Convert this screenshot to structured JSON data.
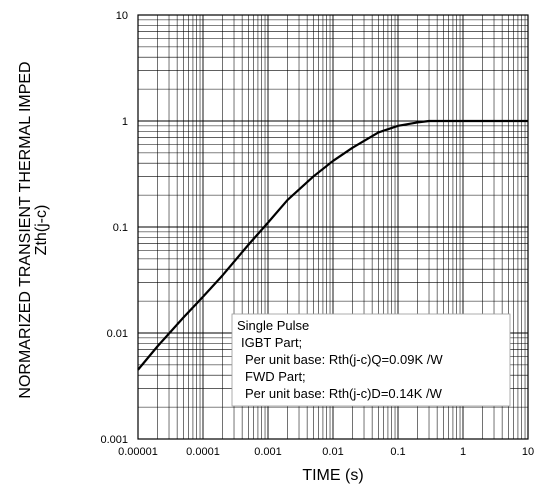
{
  "chart_data": {
    "type": "line",
    "xlabel": "TIME (s)",
    "ylabel_line1": "NORMARIZED TRANSIENT THERMAL IMPED",
    "ylabel_line2": "Zth(j-c)",
    "x_scale": "log",
    "y_scale": "log",
    "xlim": [
      1e-05,
      10
    ],
    "ylim": [
      0.001,
      10
    ],
    "x_ticks": [
      "0.00001",
      "0.0001",
      "0.001",
      "0.01",
      "0.1",
      "1",
      "10"
    ],
    "y_ticks": [
      "0.001",
      "0.01",
      "0.1",
      "1",
      "10"
    ],
    "grid": "on (major and minor)",
    "series": [
      {
        "x": [
          1e-05,
          2e-05,
          5e-05,
          0.0001,
          0.0002,
          0.0005,
          0.001,
          0.002,
          0.005,
          0.01,
          0.02,
          0.05,
          0.1,
          0.2,
          0.3,
          0.5,
          1,
          2,
          5,
          10
        ],
        "y": [
          0.0045,
          0.0075,
          0.014,
          0.022,
          0.035,
          0.068,
          0.11,
          0.18,
          0.3,
          0.42,
          0.56,
          0.78,
          0.9,
          0.97,
          1.0,
          1.0,
          1.0,
          1.0,
          1.0,
          1.0
        ]
      }
    ],
    "legend_lines": [
      "Single Pulse",
      "IGBT Part;",
      "Per unit base: Rth(j-c)Q=0.09K /W",
      "FWD Part;",
      "Per unit base: Rth(j-c)D=0.14K /W"
    ],
    "legend_position": "bottom-center"
  }
}
